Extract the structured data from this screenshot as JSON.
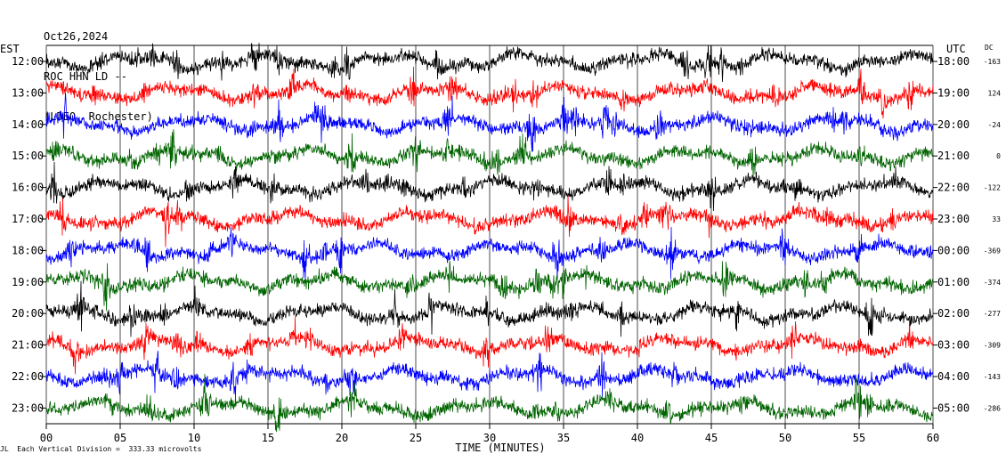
{
  "header": {
    "date": "Oct26,2024",
    "station": "ROC HHN LD --",
    "network": "(LDEO, Rochester)"
  },
  "left_axis_title": "EST",
  "right_axis_title": "UTC",
  "dc_title": "DC",
  "footer": {
    "mark": "JL",
    "scale_text": "Each Vertical Division =  333.33 microvolts"
  },
  "chart_data": {
    "type": "line",
    "title": "",
    "xlabel": "TIME (MINUTES)",
    "xlim": [
      0,
      60
    ],
    "x_ticks": [
      "00",
      "05",
      "10",
      "15",
      "20",
      "25",
      "30",
      "35",
      "40",
      "45",
      "50",
      "55",
      "60"
    ],
    "colors": [
      "#000000",
      "#ff0000",
      "#0000ff",
      "#006400"
    ],
    "grid_vertical": true,
    "rows": [
      {
        "est": "12:00",
        "utc": "18:00",
        "dc": "-163",
        "color": "#000000"
      },
      {
        "est": "13:00",
        "utc": "19:00",
        "dc": "124",
        "color": "#ff0000"
      },
      {
        "est": "14:00",
        "utc": "20:00",
        "dc": "-24",
        "color": "#0000ff"
      },
      {
        "est": "15:00",
        "utc": "21:00",
        "dc": "0",
        "color": "#006400"
      },
      {
        "est": "16:00",
        "utc": "22:00",
        "dc": "-122",
        "color": "#000000"
      },
      {
        "est": "17:00",
        "utc": "23:00",
        "dc": "33",
        "color": "#ff0000"
      },
      {
        "est": "18:00",
        "utc": "00:00",
        "dc": "-369",
        "color": "#0000ff"
      },
      {
        "est": "19:00",
        "utc": "01:00",
        "dc": "-374",
        "color": "#006400"
      },
      {
        "est": "20:00",
        "utc": "02:00",
        "dc": "-277",
        "color": "#000000"
      },
      {
        "est": "21:00",
        "utc": "03:00",
        "dc": "-309",
        "color": "#ff0000"
      },
      {
        "est": "22:00",
        "utc": "04:00",
        "dc": "-143",
        "color": "#0000ff"
      },
      {
        "est": "23:00",
        "utc": "05:00",
        "dc": "-286",
        "color": "#006400"
      }
    ]
  }
}
